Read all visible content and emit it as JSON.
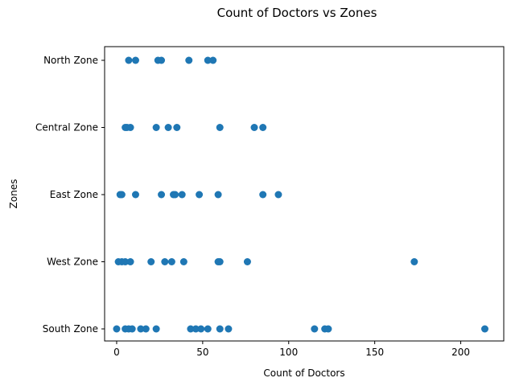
{
  "chart_data": {
    "type": "scatter",
    "title": "Count of Doctors vs Zones",
    "xlabel": "Count of Doctors",
    "ylabel": "Zones",
    "xlim": [
      -7,
      225
    ],
    "xticks": [
      0,
      50,
      100,
      150,
      200
    ],
    "categories": [
      "South Zone",
      "West Zone",
      "East Zone",
      "Central Zone",
      "North Zone"
    ],
    "grid": false,
    "marker_color": "#1f77b4",
    "series": [
      {
        "name": "North Zone",
        "x": [
          7,
          11,
          24,
          26,
          42,
          53,
          56
        ]
      },
      {
        "name": "Central Zone",
        "x": [
          5,
          6,
          8,
          23,
          30,
          35,
          60,
          80,
          85
        ]
      },
      {
        "name": "East Zone",
        "x": [
          2,
          3,
          11,
          26,
          33,
          34,
          38,
          48,
          59,
          85,
          94
        ]
      },
      {
        "name": "West Zone",
        "x": [
          1,
          3,
          5,
          8,
          20,
          28,
          32,
          39,
          59,
          60,
          76,
          173
        ]
      },
      {
        "name": "South Zone",
        "x": [
          0,
          5,
          7,
          9,
          14,
          17,
          23,
          43,
          46,
          49,
          53,
          60,
          65,
          115,
          121,
          123,
          214
        ]
      }
    ]
  }
}
